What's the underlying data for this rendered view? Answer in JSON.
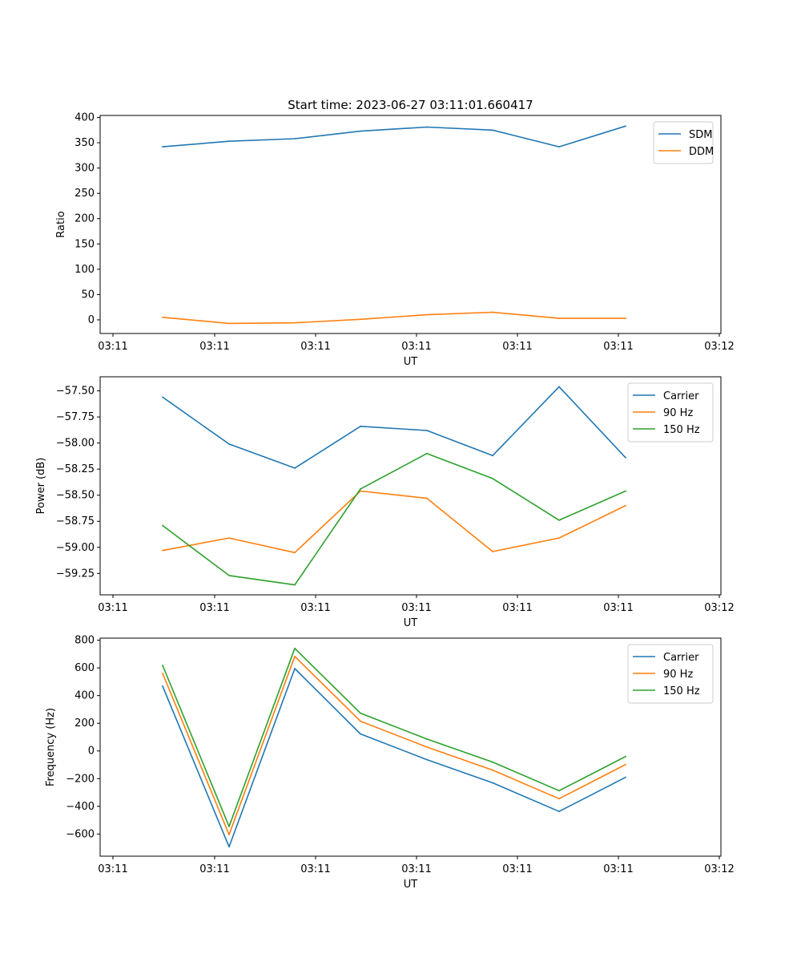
{
  "chart_data": [
    {
      "type": "line",
      "title": "Start time: 2023-06-27 03:11:01.660417",
      "xlabel": "UT",
      "ylabel": "Ratio",
      "x_ticklabels": [
        "03:11",
        "03:11",
        "03:11",
        "03:11",
        "03:11",
        "03:11",
        "03:11"
      ],
      "x_ticks_extra": "03:12",
      "ylim": [
        -27,
        404
      ],
      "yticks": [
        0,
        50,
        100,
        150,
        200,
        250,
        300,
        350,
        400
      ],
      "legend_position": "top-right",
      "series": [
        {
          "name": "SDM",
          "color": "#1f77b4",
          "values": [
            342,
            353,
            358,
            373,
            381,
            375,
            342,
            383
          ]
        },
        {
          "name": "DDM",
          "color": "#ff7f0e",
          "values": [
            5,
            -7,
            -6,
            1,
            10,
            15,
            3,
            3
          ]
        }
      ]
    },
    {
      "type": "line",
      "title": "",
      "xlabel": "UT",
      "ylabel": "Power (dB)",
      "x_ticklabels": [
        "03:11",
        "03:11",
        "03:11",
        "03:11",
        "03:11",
        "03:11",
        "03:11"
      ],
      "x_ticks_extra": "03:12",
      "ylim": [
        -59.455,
        -57.365
      ],
      "yticks": [
        -59.25,
        -59.0,
        -58.75,
        -58.5,
        -58.25,
        -58.0,
        -57.75,
        -57.5
      ],
      "ytick_labels": [
        "−59.25",
        "−59.00",
        "−58.75",
        "−58.50",
        "−58.25",
        "−58.00",
        "−57.75",
        "−57.50"
      ],
      "legend_position": "top-right",
      "series": [
        {
          "name": "Carrier",
          "color": "#1f77b4",
          "values": [
            -57.56,
            -58.01,
            -58.24,
            -57.84,
            -57.88,
            -58.12,
            -57.46,
            -58.14
          ]
        },
        {
          "name": "90 Hz",
          "color": "#ff7f0e",
          "values": [
            -59.03,
            -58.91,
            -59.05,
            -58.46,
            -58.53,
            -59.04,
            -58.91,
            -58.6
          ]
        },
        {
          "name": "150 Hz",
          "color": "#2ca02c",
          "values": [
            -58.79,
            -59.27,
            -59.36,
            -58.44,
            -58.1,
            -58.34,
            -58.74,
            -58.46
          ]
        }
      ]
    },
    {
      "type": "line",
      "title": "",
      "xlabel": "UT",
      "ylabel": "Frequency (Hz)",
      "x_ticklabels": [
        "03:11",
        "03:11",
        "03:11",
        "03:11",
        "03:11",
        "03:11",
        "03:11"
      ],
      "x_ticks_extra": "03:12",
      "ylim": [
        -760,
        815
      ],
      "yticks": [
        -600,
        -400,
        -200,
        0,
        200,
        400,
        600,
        800
      ],
      "ytick_labels": [
        "−600",
        "−400",
        "−200",
        "0",
        "200",
        "400",
        "600",
        "800"
      ],
      "legend_position": "top-right",
      "series": [
        {
          "name": "Carrier",
          "color": "#1f77b4",
          "values": [
            468,
            -692,
            595,
            123,
            -63,
            -230,
            -437,
            -190
          ]
        },
        {
          "name": "90 Hz",
          "color": "#ff7f0e",
          "values": [
            560,
            -604,
            683,
            215,
            28,
            -138,
            -345,
            -98
          ]
        },
        {
          "name": "150 Hz",
          "color": "#2ca02c",
          "values": [
            618,
            -546,
            741,
            273,
            86,
            -80,
            -287,
            -40
          ]
        }
      ]
    }
  ]
}
